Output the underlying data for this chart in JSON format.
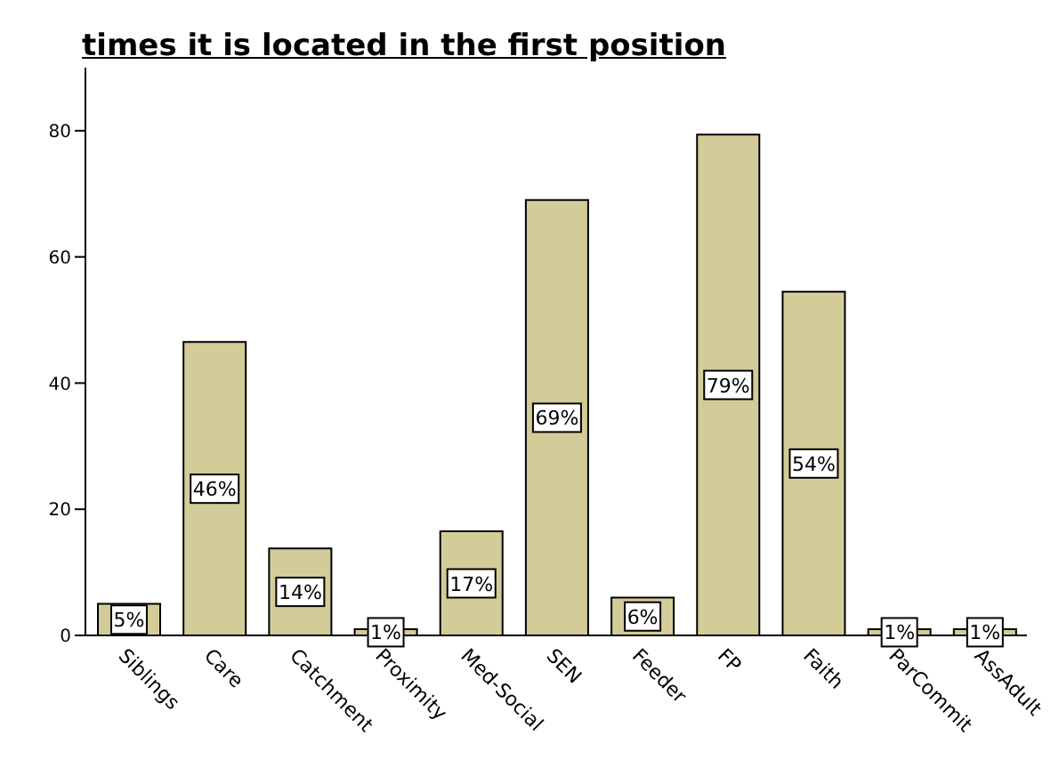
{
  "chart_data": {
    "type": "bar",
    "title": "times it is located in the first position",
    "categories": [
      "Siblings",
      "Care",
      "Catchment",
      "Proximity",
      "Med-Social",
      "SEN",
      "Feeder",
      "FP",
      "Faith",
      "ParCommit",
      "AssAdult"
    ],
    "values": [
      5,
      46.5,
      13.8,
      1,
      16.5,
      69,
      6,
      79.4,
      54.5,
      1,
      1
    ],
    "value_labels": [
      "5%",
      "46%",
      "14%",
      "1%",
      "17%",
      "69%",
      "6%",
      "79%",
      "54%",
      "1%",
      "1%"
    ],
    "color": "#d3cc98",
    "ylim": [
      0,
      90
    ],
    "yticks": [
      0,
      20,
      40,
      60,
      80
    ],
    "grid": false,
    "legend": false
  }
}
